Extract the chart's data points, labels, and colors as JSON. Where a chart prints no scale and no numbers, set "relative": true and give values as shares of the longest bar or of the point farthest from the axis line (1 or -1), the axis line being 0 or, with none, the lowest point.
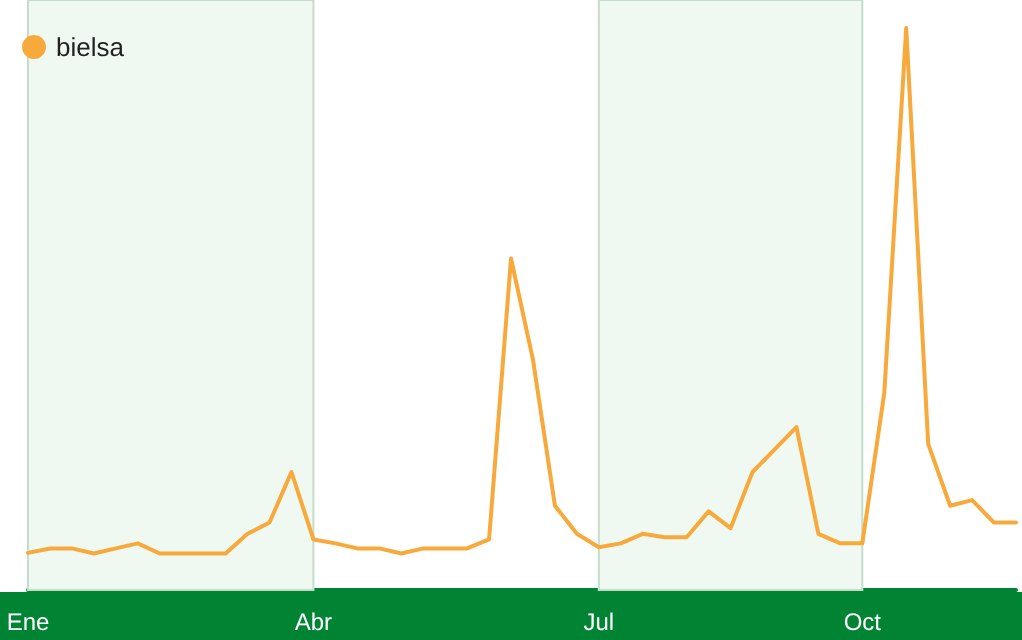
{
  "chart_data": {
    "type": "line",
    "relative": true,
    "marker": "none",
    "legend": "top left",
    "grid": false,
    "categories": [
      "Ene",
      null,
      null,
      null,
      null,
      null,
      null,
      null,
      null,
      null,
      null,
      null,
      null,
      "Abr",
      null,
      null,
      null,
      null,
      null,
      null,
      null,
      null,
      null,
      null,
      null,
      null,
      "Jul",
      null,
      null,
      null,
      null,
      null,
      null,
      null,
      null,
      null,
      null,
      null,
      "Oct",
      null,
      null,
      null,
      null,
      null,
      null,
      null
    ],
    "series": [
      {
        "name": "bielsa",
        "color": "#f7a93b",
        "values": [
          0.066,
          0.074,
          0.074,
          0.065,
          0.074,
          0.083,
          0.065,
          0.065,
          0.065,
          0.065,
          0.1,
          0.12,
          0.21,
          0.09,
          0.083,
          0.074,
          0.074,
          0.065,
          0.074,
          0.074,
          0.074,
          0.09,
          0.59,
          0.41,
          0.15,
          0.1,
          0.076,
          0.083,
          0.1,
          0.094,
          0.094,
          0.14,
          0.11,
          0.21,
          0.25,
          0.29,
          0.1,
          0.083,
          0.083,
          0.35,
          1,
          0.26,
          0.15,
          0.16,
          0.12,
          0.12
        ]
      }
    ],
    "bands": [
      {
        "axis": "x",
        "from": "Ene",
        "to": "Abr",
        "color": "#eff8f1"
      },
      {
        "axis": "x",
        "from": "Jul",
        "to": "Oct",
        "color": "#eff8f1"
      }
    ]
  }
}
